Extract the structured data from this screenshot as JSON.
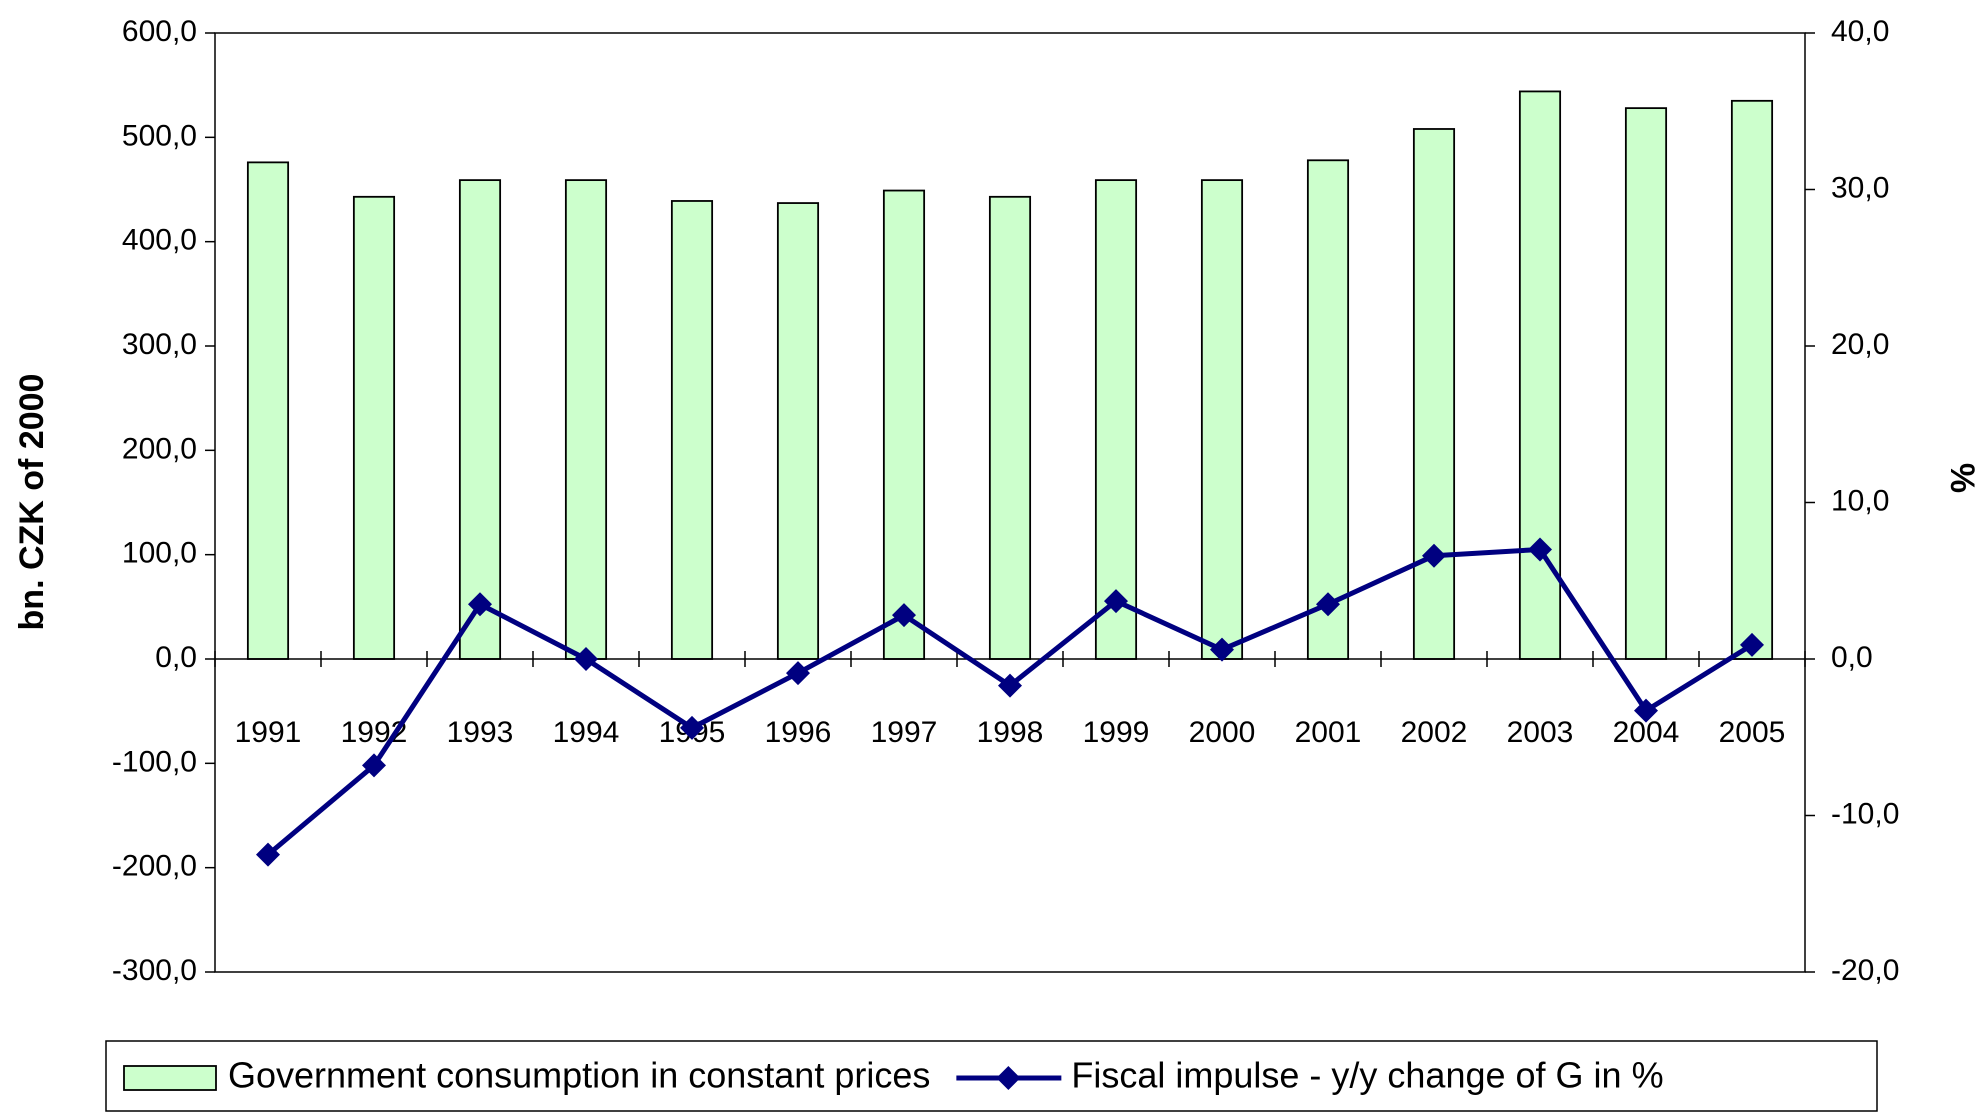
{
  "chart_data": {
    "type": "bar_line",
    "y_label": "bn. CZK of 2000",
    "y2_label": "%",
    "categories": [
      "1991",
      "1992",
      "1993",
      "1994",
      "1995",
      "1996",
      "1997",
      "1998",
      "1999",
      "2000",
      "2001",
      "2002",
      "2003",
      "2004",
      "2005"
    ],
    "series": [
      {
        "name": "Government consumption in constant prices",
        "type": "bar",
        "color": "#ccffcc",
        "values": [
          476,
          443,
          459,
          459,
          439,
          437,
          449,
          443,
          459,
          459,
          478,
          508,
          544,
          528,
          535
        ]
      },
      {
        "name": "Fiscal impulse - y/y change of G in %",
        "type": "line",
        "axis": "y2",
        "color": "#000080",
        "values": [
          -12.5,
          -6.8,
          3.5,
          0,
          -4.4,
          -0.9,
          2.8,
          -1.7,
          3.7,
          0.6,
          3.5,
          6.6,
          7.0,
          -3.3,
          0.9
        ]
      }
    ],
    "ylim": [
      -300,
      600
    ],
    "yticks": [
      {
        "value": -300,
        "label": "-300,0"
      },
      {
        "value": -200,
        "label": "-200,0"
      },
      {
        "value": -100,
        "label": "-100,0"
      },
      {
        "value": 0,
        "label": "0,0"
      },
      {
        "value": 100,
        "label": "100,0"
      },
      {
        "value": 200,
        "label": "200,0"
      },
      {
        "value": 300,
        "label": "300,0"
      },
      {
        "value": 400,
        "label": "400,0"
      },
      {
        "value": 500,
        "label": "500,0"
      },
      {
        "value": 600,
        "label": "600,0"
      }
    ],
    "y2lim": [
      -20,
      40
    ],
    "y2ticks": [
      {
        "value": -20,
        "label": "-20,0"
      },
      {
        "value": -10,
        "label": "-10,0"
      },
      {
        "value": 0,
        "label": "0,0"
      },
      {
        "value": 10,
        "label": "10,0"
      },
      {
        "value": 20,
        "label": "20,0"
      },
      {
        "value": 30,
        "label": "30,0"
      },
      {
        "value": 40,
        "label": "40,0"
      }
    ],
    "legend": "bottom"
  }
}
